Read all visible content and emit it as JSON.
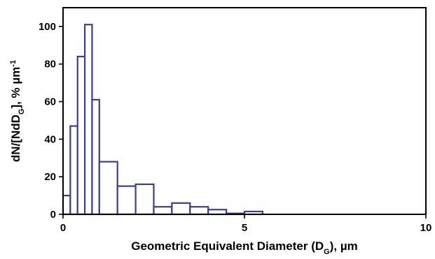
{
  "chart_data": {
    "type": "bar",
    "bar_color": "#3b3f8f",
    "xlabel": {
      "parts": [
        {
          "text": "Geometric Equivalent Diameter (D",
          "style": "normal"
        },
        {
          "text": "G",
          "style": "sub"
        },
        {
          "text": "), µm",
          "style": "normal"
        }
      ]
    },
    "ylabel": {
      "parts": [
        {
          "text": "dN/[NdD",
          "style": "normal"
        },
        {
          "text": "G",
          "style": "sub"
        },
        {
          "text": "], % µm",
          "style": "normal"
        },
        {
          "text": "-1",
          "style": "sup"
        }
      ]
    },
    "xlim": [
      0,
      10
    ],
    "ylim": [
      0,
      110
    ],
    "x_ticks": [
      {
        "value": 0,
        "label": "0"
      },
      {
        "value": 5,
        "label": "5"
      },
      {
        "value": 10,
        "label": "10"
      }
    ],
    "y_ticks": [
      {
        "value": 0,
        "label": "0"
      },
      {
        "value": 20,
        "label": "20"
      },
      {
        "value": 40,
        "label": "40"
      },
      {
        "value": 60,
        "label": "60"
      },
      {
        "value": 80,
        "label": "80"
      },
      {
        "value": 100,
        "label": "100"
      }
    ],
    "bins": [
      {
        "x0": 0.0,
        "x1": 0.2,
        "value": 10
      },
      {
        "x0": 0.2,
        "x1": 0.4,
        "value": 47
      },
      {
        "x0": 0.4,
        "x1": 0.6,
        "value": 84
      },
      {
        "x0": 0.6,
        "x1": 0.8,
        "value": 101
      },
      {
        "x0": 0.8,
        "x1": 1.0,
        "value": 61
      },
      {
        "x0": 1.0,
        "x1": 1.5,
        "value": 28
      },
      {
        "x0": 1.5,
        "x1": 2.0,
        "value": 15
      },
      {
        "x0": 2.0,
        "x1": 2.5,
        "value": 16
      },
      {
        "x0": 2.5,
        "x1": 3.0,
        "value": 4
      },
      {
        "x0": 3.0,
        "x1": 3.5,
        "value": 6
      },
      {
        "x0": 3.5,
        "x1": 4.0,
        "value": 4
      },
      {
        "x0": 4.0,
        "x1": 4.5,
        "value": 2.5
      },
      {
        "x0": 4.5,
        "x1": 5.0,
        "value": 0.5
      },
      {
        "x0": 5.0,
        "x1": 5.5,
        "value": 1.5
      }
    ]
  }
}
